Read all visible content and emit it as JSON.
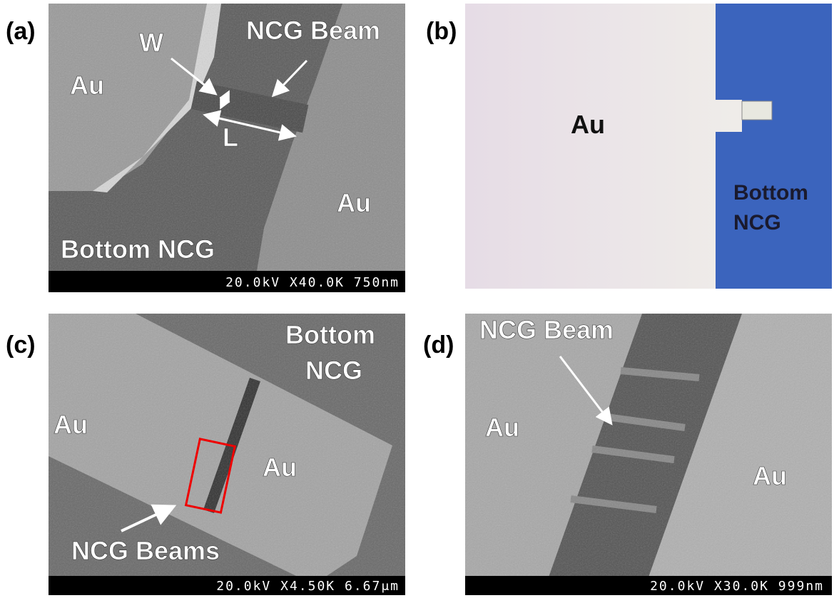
{
  "panels": [
    {
      "label": "(a)",
      "annotations": [
        "W",
        "NCG Beam",
        "Au",
        "L",
        "Au",
        "Bottom NCG"
      ],
      "scale_bar": "20.0kV X40.0K  750nm"
    },
    {
      "label": "(b)",
      "annotations": [
        "Au"
      ],
      "bottom_label": [
        "Bottom",
        "NCG"
      ]
    },
    {
      "label": "(c)",
      "annotations": [
        "Au",
        "Au",
        "NCG Beams"
      ],
      "bottom_label": [
        "Bottom",
        "NCG"
      ],
      "scale_bar": "20.0kV X4.50K 6.67μm"
    },
    {
      "label": "(d)",
      "annotations": [
        "NCG Beam",
        "Au",
        "Au"
      ],
      "scale_bar": "20.0kV X30.0K  999nm"
    }
  ]
}
